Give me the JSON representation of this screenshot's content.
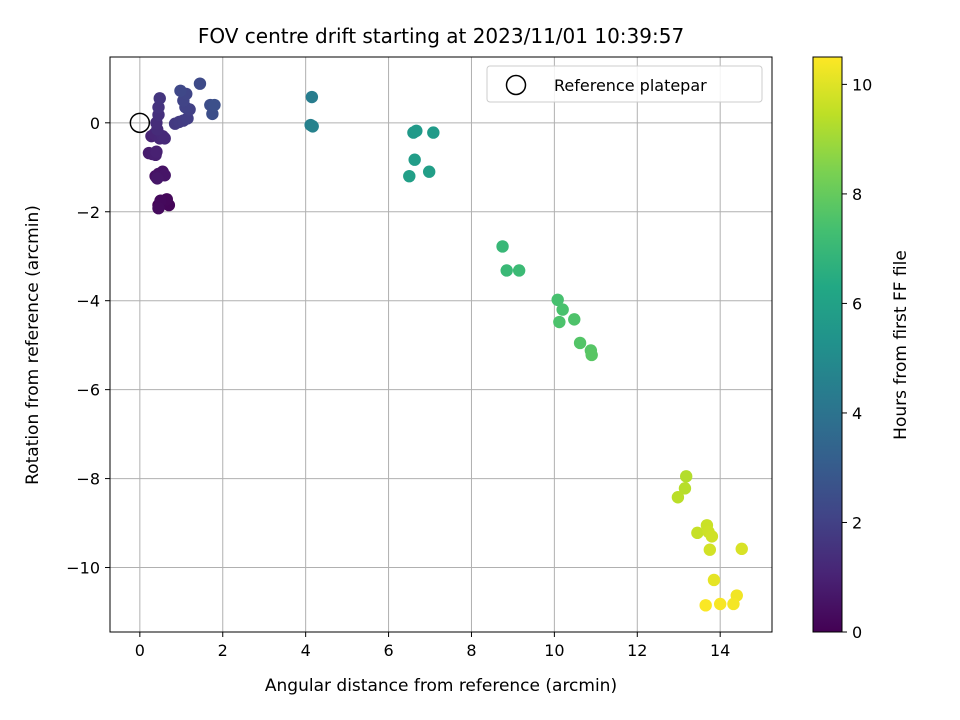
{
  "chart_data": {
    "type": "scatter",
    "title": "FOV centre drift starting at 2023/11/01 10:39:57",
    "xlabel": "Angular distance from reference (arcmin)",
    "ylabel": "Rotation from reference (arcmin)",
    "xlim": [
      -0.72,
      15.25
    ],
    "ylim": [
      -11.45,
      1.48
    ],
    "x_ticks": [
      0,
      2,
      4,
      6,
      8,
      10,
      12,
      14
    ],
    "y_ticks": [
      0,
      -2,
      -4,
      -6,
      -8,
      -10
    ],
    "x_tick_labels": [
      "0",
      "2",
      "4",
      "6",
      "8",
      "10",
      "12",
      "14"
    ],
    "y_tick_labels": [
      "0",
      "−2",
      "−4",
      "−6",
      "−8",
      "−10"
    ],
    "grid": true,
    "legend": {
      "position": "top-right",
      "entries": [
        "Reference platepar"
      ]
    },
    "reference_point": {
      "x": 0,
      "y": 0
    },
    "colorbar": {
      "label": "Hours from first FF file",
      "min": 0,
      "max": 10.5,
      "ticks": [
        0,
        2,
        4,
        6,
        8,
        10
      ],
      "tick_labels": [
        "0",
        "2",
        "4",
        "6",
        "8",
        "10"
      ],
      "colormap": "viridis"
    },
    "points": [
      {
        "x": 0.45,
        "y": -1.85,
        "c": 0.0
      },
      {
        "x": 0.6,
        "y": -1.8,
        "c": 0.1
      },
      {
        "x": 0.7,
        "y": -1.85,
        "c": 0.15
      },
      {
        "x": 0.65,
        "y": -1.72,
        "c": 0.2
      },
      {
        "x": 0.5,
        "y": -1.75,
        "c": 0.25
      },
      {
        "x": 0.45,
        "y": -1.92,
        "c": 0.3
      },
      {
        "x": 0.38,
        "y": -1.2,
        "c": 0.45
      },
      {
        "x": 0.55,
        "y": -1.1,
        "c": 0.5
      },
      {
        "x": 0.45,
        "y": -1.15,
        "c": 0.55
      },
      {
        "x": 0.6,
        "y": -1.18,
        "c": 0.6
      },
      {
        "x": 0.42,
        "y": -1.25,
        "c": 0.65
      },
      {
        "x": 0.22,
        "y": -0.68,
        "c": 0.8
      },
      {
        "x": 0.3,
        "y": -0.7,
        "c": 0.85
      },
      {
        "x": 0.38,
        "y": -0.72,
        "c": 0.9
      },
      {
        "x": 0.4,
        "y": -0.65,
        "c": 0.95
      },
      {
        "x": 0.28,
        "y": -0.3,
        "c": 1.05
      },
      {
        "x": 0.35,
        "y": -0.25,
        "c": 1.1
      },
      {
        "x": 0.48,
        "y": -0.35,
        "c": 1.15
      },
      {
        "x": 0.55,
        "y": -0.3,
        "c": 1.2
      },
      {
        "x": 0.6,
        "y": -0.35,
        "c": 1.25
      },
      {
        "x": 0.42,
        "y": -0.15,
        "c": 1.3
      },
      {
        "x": 0.4,
        "y": 0.0,
        "c": 1.35
      },
      {
        "x": 0.45,
        "y": 0.18,
        "c": 1.45
      },
      {
        "x": 0.45,
        "y": 0.35,
        "c": 1.55
      },
      {
        "x": 0.48,
        "y": 0.55,
        "c": 1.6
      },
      {
        "x": 0.85,
        "y": -0.02,
        "c": 1.75
      },
      {
        "x": 0.95,
        "y": 0.02,
        "c": 1.8
      },
      {
        "x": 1.05,
        "y": 0.05,
        "c": 1.85
      },
      {
        "x": 1.15,
        "y": 0.1,
        "c": 1.9
      },
      {
        "x": 1.2,
        "y": 0.3,
        "c": 2.0
      },
      {
        "x": 1.1,
        "y": 0.35,
        "c": 2.05
      },
      {
        "x": 1.05,
        "y": 0.5,
        "c": 2.1
      },
      {
        "x": 1.12,
        "y": 0.65,
        "c": 2.15
      },
      {
        "x": 0.98,
        "y": 0.72,
        "c": 2.25
      },
      {
        "x": 1.45,
        "y": 0.88,
        "c": 2.35
      },
      {
        "x": 1.7,
        "y": 0.4,
        "c": 2.45
      },
      {
        "x": 1.75,
        "y": 0.2,
        "c": 2.5
      },
      {
        "x": 1.8,
        "y": 0.4,
        "c": 2.55
      },
      {
        "x": 4.15,
        "y": 0.58,
        "c": 4.4
      },
      {
        "x": 4.12,
        "y": -0.05,
        "c": 4.55
      },
      {
        "x": 4.17,
        "y": -0.08,
        "c": 4.6
      },
      {
        "x": 6.6,
        "y": -0.22,
        "c": 5.6
      },
      {
        "x": 6.67,
        "y": -0.18,
        "c": 5.65
      },
      {
        "x": 7.08,
        "y": -0.22,
        "c": 5.7
      },
      {
        "x": 6.63,
        "y": -0.83,
        "c": 5.8
      },
      {
        "x": 6.98,
        "y": -1.1,
        "c": 5.85
      },
      {
        "x": 6.5,
        "y": -1.2,
        "c": 5.9
      },
      {
        "x": 8.75,
        "y": -2.78,
        "c": 7.0
      },
      {
        "x": 8.85,
        "y": -3.32,
        "c": 7.05
      },
      {
        "x": 9.15,
        "y": -3.32,
        "c": 7.1
      },
      {
        "x": 10.08,
        "y": -3.98,
        "c": 7.4
      },
      {
        "x": 10.2,
        "y": -4.2,
        "c": 7.45
      },
      {
        "x": 10.12,
        "y": -4.48,
        "c": 7.5
      },
      {
        "x": 10.48,
        "y": -4.42,
        "c": 7.55
      },
      {
        "x": 10.62,
        "y": -4.95,
        "c": 7.65
      },
      {
        "x": 10.88,
        "y": -5.12,
        "c": 7.7
      },
      {
        "x": 10.9,
        "y": -5.22,
        "c": 7.75
      },
      {
        "x": 13.18,
        "y": -7.95,
        "c": 9.3
      },
      {
        "x": 13.15,
        "y": -8.22,
        "c": 9.35
      },
      {
        "x": 12.98,
        "y": -8.42,
        "c": 9.4
      },
      {
        "x": 13.45,
        "y": -9.22,
        "c": 9.6
      },
      {
        "x": 13.68,
        "y": -9.05,
        "c": 9.65
      },
      {
        "x": 13.72,
        "y": -9.2,
        "c": 9.7
      },
      {
        "x": 13.8,
        "y": -9.3,
        "c": 9.75
      },
      {
        "x": 13.75,
        "y": -9.6,
        "c": 9.8
      },
      {
        "x": 14.52,
        "y": -9.58,
        "c": 9.9
      },
      {
        "x": 13.85,
        "y": -10.28,
        "c": 10.1
      },
      {
        "x": 14.4,
        "y": -10.63,
        "c": 10.3
      },
      {
        "x": 14.32,
        "y": -10.82,
        "c": 10.35
      },
      {
        "x": 14.0,
        "y": -10.82,
        "c": 10.4
      },
      {
        "x": 13.65,
        "y": -10.85,
        "c": 10.45
      }
    ]
  }
}
